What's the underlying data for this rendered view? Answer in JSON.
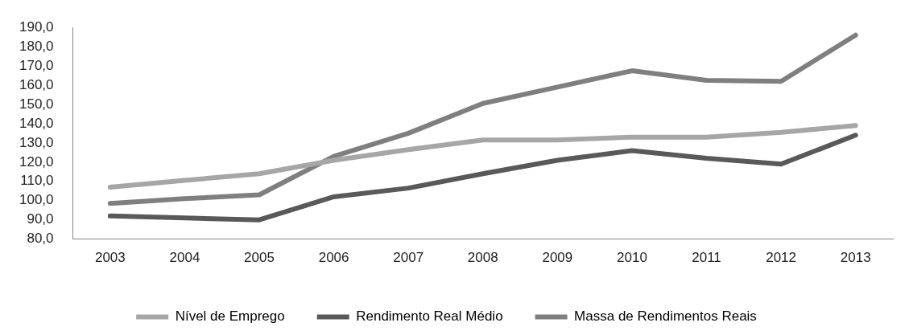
{
  "chart_data": {
    "type": "line",
    "categories": [
      "2003",
      "2004",
      "2005",
      "2006",
      "2007",
      "2008",
      "2009",
      "2010",
      "2011",
      "2012",
      "2013"
    ],
    "series": [
      {
        "name": "Nível de Emprego",
        "color": "#a6a6a6",
        "values": [
          107,
          110.5,
          114,
          121,
          126.5,
          131.5,
          131.5,
          133,
          133,
          135.5,
          139
        ]
      },
      {
        "name": "Rendimento Real Médio",
        "color": "#595959",
        "values": [
          92,
          91,
          90,
          102,
          106.5,
          114,
          121,
          126,
          122,
          119,
          134
        ]
      },
      {
        "name": "Massa de Rendimentos Reais",
        "color": "#7f7f7f",
        "values": [
          98.5,
          101,
          103,
          123,
          135,
          150.5,
          159,
          167.5,
          162.5,
          162,
          186
        ]
      }
    ],
    "ylim": [
      80,
      190
    ],
    "yticks": [
      {
        "value": 80,
        "label": "80,0"
      },
      {
        "value": 90,
        "label": "90,0"
      },
      {
        "value": 100,
        "label": "100,0"
      },
      {
        "value": 110,
        "label": "110,0"
      },
      {
        "value": 120,
        "label": "120,0"
      },
      {
        "value": 130,
        "label": "130,0"
      },
      {
        "value": 140,
        "label": "140,0"
      },
      {
        "value": 150,
        "label": "150,0"
      },
      {
        "value": 160,
        "label": "160,0"
      },
      {
        "value": 170,
        "label": "170,0"
      },
      {
        "value": 180,
        "label": "180,0"
      },
      {
        "value": 190,
        "label": "190,0"
      }
    ],
    "grid": false,
    "legend": "bottom",
    "marker": "none",
    "line_style": "solid"
  }
}
